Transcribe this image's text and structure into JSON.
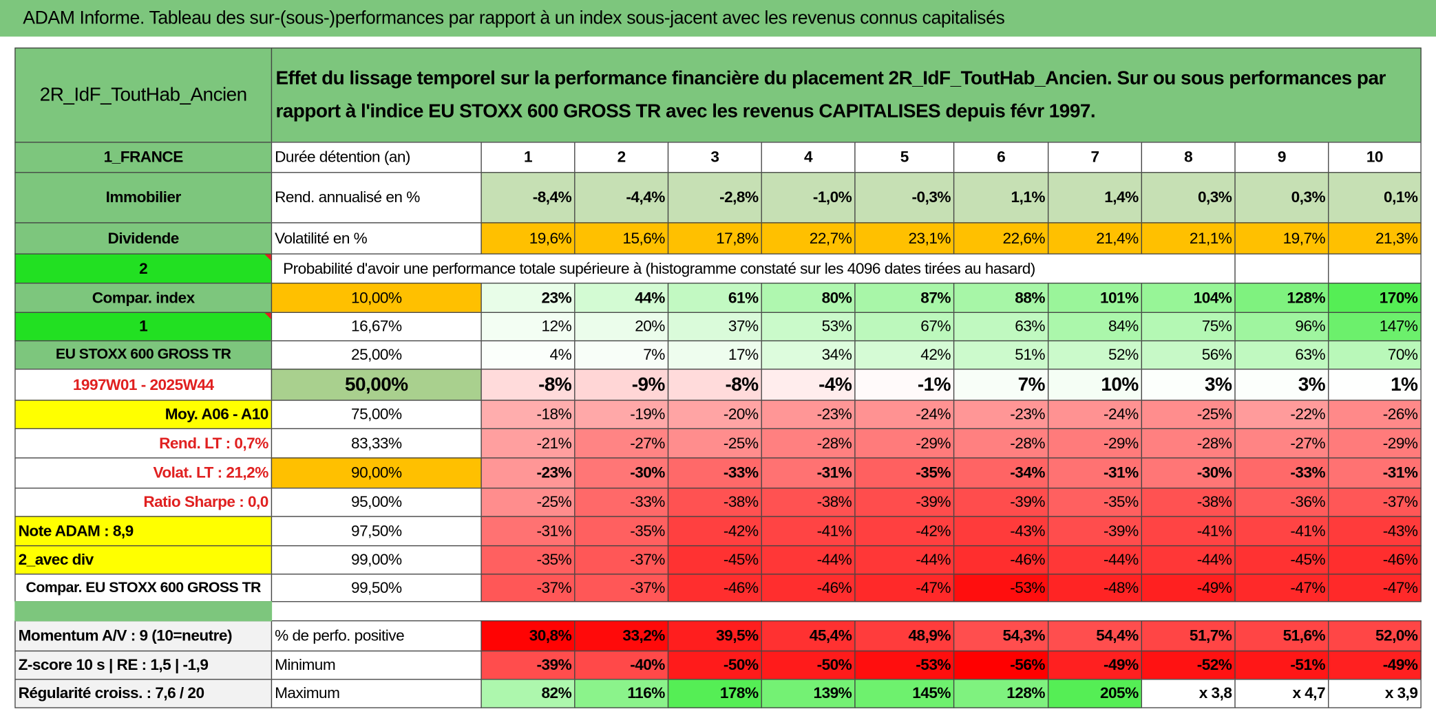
{
  "header": {
    "title": "ADAM Informe. Tableau des sur-(sous-)performances par rapport à un index sous-jacent avec les revenus connus capitalisés"
  },
  "table": {
    "name": "2R_IdF_ToutHab_Ancien",
    "description": "Effet du lissage temporel sur la performance financière du placement 2R_IdF_ToutHab_Ancien. Sur ou sous performances par rapport à l'indice EU STOXX 600 GROSS TR avec les revenus CAPITALISES depuis févr 1997.",
    "rows": [
      [
        "1_FRANCE",
        "Durée détention (an)",
        "1",
        "2",
        "3",
        "4",
        "5",
        "6",
        "7",
        "8",
        "9",
        "10"
      ],
      [
        "Immobilier",
        "Rend. annualisé en %",
        "-8,4%",
        "-4,4%",
        "-2,8%",
        "-1,0%",
        "-0,3%",
        "1,1%",
        "1,4%",
        "0,3%",
        "0,3%",
        "0,1%"
      ],
      [
        "Dividende",
        "Volatilité en %",
        "19,6%",
        "15,6%",
        "17,8%",
        "22,7%",
        "23,1%",
        "22,6%",
        "21,4%",
        "21,1%",
        "19,7%",
        "21,3%"
      ],
      [
        "2",
        "Probabilité d'avoir une performance totale supérieure à (histogramme constaté sur les 4096 dates tirées au hasard)"
      ],
      [
        "Compar. index",
        "10,00%",
        "23%",
        "44%",
        "61%",
        "80%",
        "87%",
        "88%",
        "101%",
        "104%",
        "128%",
        "170%"
      ],
      [
        "1",
        "16,67%",
        "12%",
        "20%",
        "37%",
        "53%",
        "67%",
        "63%",
        "84%",
        "75%",
        "96%",
        "147%"
      ],
      [
        "EU STOXX 600 GROSS TR",
        "25,00%",
        "4%",
        "7%",
        "17%",
        "34%",
        "42%",
        "51%",
        "52%",
        "56%",
        "63%",
        "70%"
      ],
      [
        "1997W01 - 2025W44",
        "50,00%",
        "-8%",
        "-9%",
        "-8%",
        "-4%",
        "-1%",
        "7%",
        "10%",
        "3%",
        "3%",
        "1%"
      ],
      [
        "Moy. A06 - A10",
        "75,00%",
        "-18%",
        "-19%",
        "-20%",
        "-23%",
        "-24%",
        "-23%",
        "-24%",
        "-25%",
        "-22%",
        "-26%"
      ],
      [
        "Rend. LT :   0,7%",
        "83,33%",
        "-21%",
        "-27%",
        "-25%",
        "-28%",
        "-29%",
        "-28%",
        "-29%",
        "-28%",
        "-27%",
        "-29%"
      ],
      [
        "Volat. LT :   21,2%",
        "90,00%",
        "-23%",
        "-30%",
        "-33%",
        "-31%",
        "-35%",
        "-34%",
        "-31%",
        "-30%",
        "-33%",
        "-31%"
      ],
      [
        "Ratio Sharpe :    0,0",
        "95,00%",
        "-25%",
        "-33%",
        "-38%",
        "-38%",
        "-39%",
        "-39%",
        "-35%",
        "-38%",
        "-36%",
        "-37%"
      ],
      [
        "Note ADAM : 8,9",
        "97,50%",
        "-31%",
        "-35%",
        "-42%",
        "-41%",
        "-42%",
        "-43%",
        "-39%",
        "-41%",
        "-41%",
        "-43%"
      ],
      [
        "2_avec div",
        "99,00%",
        "-35%",
        "-37%",
        "-45%",
        "-44%",
        "-44%",
        "-46%",
        "-44%",
        "-44%",
        "-45%",
        "-46%"
      ],
      [
        "Compar. EU STOXX 600 GROSS TR",
        "99,50%",
        "-37%",
        "-37%",
        "-46%",
        "-46%",
        "-47%",
        "-53%",
        "-48%",
        "-49%",
        "-47%",
        "-47%"
      ],
      [
        "Momentum A/V : 9 (10=neutre)",
        "% de perfo. positive",
        "30,8%",
        "33,2%",
        "39,5%",
        "45,4%",
        "48,9%",
        "54,3%",
        "54,4%",
        "51,7%",
        "51,6%",
        "52,0%"
      ],
      [
        "Z-score 10 s | RE : 1,5 | -1,9",
        "Minimum",
        "-39%",
        "-40%",
        "-50%",
        "-50%",
        "-53%",
        "-56%",
        "-49%",
        "-52%",
        "-51%",
        "-49%"
      ],
      [
        "Régularité croiss. : 7,6 / 20",
        "Maximum",
        "82%",
        "116%",
        "178%",
        "139%",
        "145%",
        "128%",
        "205%",
        "x 3,8",
        "x 4,7",
        "x 3,9"
      ]
    ]
  }
}
